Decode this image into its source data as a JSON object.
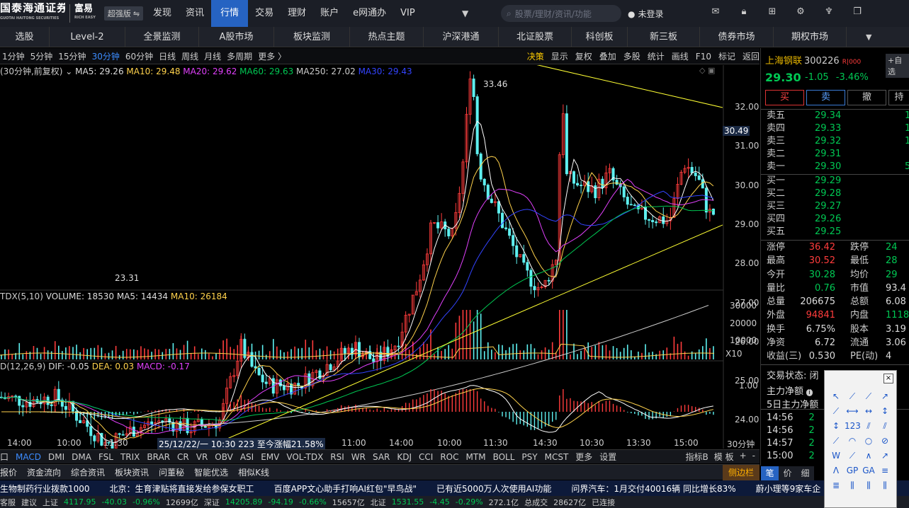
{
  "brand": {
    "name": "国泰海通证券",
    "sub": "GUOTAI HAITONG SECURITIES",
    "partner": "富易",
    "partner_sub": "RICH EASY",
    "edition": "超强版"
  },
  "nav": [
    "发现",
    "资讯",
    "行情",
    "交易",
    "理财",
    "账户",
    "e网通办",
    "VIP"
  ],
  "nav_active": "行情",
  "search": {
    "placeholder": "股票/理财/资讯/功能"
  },
  "login": "未登录",
  "tabs2": [
    "选股",
    "Level-2",
    "全景监测",
    "A股市场",
    "板块监测",
    "热点主题",
    "沪深港通",
    "北证股票",
    "科创板",
    "新三板",
    "债券市场",
    "期权市场"
  ],
  "periods": [
    "1分钟",
    "5分钟",
    "15分钟",
    "30分钟",
    "60分钟",
    "日线",
    "周线",
    "月线",
    "多周期",
    "更多 〉"
  ],
  "period_selected": "30分钟",
  "tools": [
    "决策",
    "显示",
    "复权",
    "叠加",
    "多股",
    "统计",
    "画线",
    "F10",
    "标记",
    "返回"
  ],
  "ma_line": {
    "title": "(30分钟,前复权)",
    "ma5": "MA5: 29.26",
    "ma10": "MA10: 29.48",
    "ma20": "MA20: 29.62",
    "ma60": "MA60: 29.63",
    "ma250": "MA250: 27.02",
    "ma30": "MA30: 29.43"
  },
  "chart_labels": {
    "high": "33.46",
    "low": "23.31",
    "cur": "30.49"
  },
  "price_axis": [
    "32.00",
    "31.00",
    "30.00",
    "29.00",
    "28.00",
    "27.00",
    "26.00",
    "25.00",
    "24.00"
  ],
  "vol_line": {
    "title": "TDX(5,10)",
    "volume": "VOLUME: 18530",
    "ma5": "MA5: 14434",
    "ma10": "MA10: 26184"
  },
  "vol_axis": [
    "30000",
    "20000",
    "10000"
  ],
  "vol_unit": "X10",
  "macd_line": {
    "title": "D(12,26,9)",
    "dif": "DIF: -0.05",
    "dea": "DEA: 0.03",
    "macd": "MACD: -0.17"
  },
  "macd_axis": [
    "1.00"
  ],
  "time_axis": [
    "14:00",
    "10:00",
    "11:30",
    "11:00",
    "14:00",
    "10:00",
    "11:30",
    "14:30",
    "10:30",
    "13:30",
    "15:00"
  ],
  "time_cursor": "25/12/22/一 10:30 223 至今涨幅21.58%",
  "time_unit": "30分钟",
  "ind_tabs": [
    "口",
    "MACD",
    "DMI",
    "DMA",
    "FSL",
    "TRIX",
    "BRAR",
    "CR",
    "VR",
    "OBV",
    "ASI",
    "EMV",
    "VOL-TDX",
    "RSI",
    "WR",
    "SAR",
    "KDJ",
    "CCI",
    "ROC",
    "MTM",
    "BOLL",
    "PSY",
    "MCST",
    "更多",
    "设置"
  ],
  "ind_tab_selected": "MACD",
  "ind_right": [
    "指标B",
    "模 板",
    "+",
    "-"
  ],
  "bottom_tabs": [
    "报价",
    "资金流向",
    "综合资讯",
    "板块资讯",
    "问董秘",
    "智能优选",
    "相似K线"
  ],
  "side_btn": "侧边栏",
  "stock": {
    "name": "上海钢联",
    "code": "300226",
    "tag": "R|000",
    "btn": "自选",
    "price": "29.30",
    "change": "-1.05",
    "pct": "-3.46%"
  },
  "trade_btns": [
    "买",
    "卖",
    "撤",
    "持"
  ],
  "sells": [
    {
      "l": "卖五",
      "p": "29.34",
      "v": "1"
    },
    {
      "l": "卖四",
      "p": "29.33",
      "v": "1"
    },
    {
      "l": "卖三",
      "p": "29.32",
      "v": "1"
    },
    {
      "l": "卖二",
      "p": "29.31",
      "v": ""
    },
    {
      "l": "卖一",
      "p": "29.30",
      "v": "5"
    }
  ],
  "buys": [
    {
      "l": "买一",
      "p": "29.29",
      "v": ""
    },
    {
      "l": "买二",
      "p": "29.28",
      "v": ""
    },
    {
      "l": "买三",
      "p": "29.27",
      "v": ""
    },
    {
      "l": "买四",
      "p": "29.26",
      "v": ""
    },
    {
      "l": "买五",
      "p": "29.25",
      "v": ""
    }
  ],
  "stats": [
    {
      "l1": "涨停",
      "v1": "36.42",
      "c1": "red",
      "l2": "跌停",
      "v2": "24",
      "c2": "grn"
    },
    {
      "l1": "最高",
      "v1": "30.52",
      "c1": "red",
      "l2": "最低",
      "v2": "28",
      "c2": "grn"
    },
    {
      "l1": "今开",
      "v1": "30.28",
      "c1": "grn",
      "l2": "均价",
      "v2": "29",
      "c2": "grn"
    },
    {
      "l1": "量比",
      "v1": "0.76",
      "c1": "grn",
      "l2": "市值",
      "v2": "93.4",
      "c2": "wht"
    },
    {
      "l1": "总量",
      "v1": "206675",
      "c1": "wht",
      "l2": "总额",
      "v2": "6.08",
      "c2": "wht"
    },
    {
      "l1": "外盘",
      "v1": "94841",
      "c1": "red",
      "l2": "内盘",
      "v2": "1118",
      "c2": "grn"
    },
    {
      "l1": "换手",
      "v1": "6.75%",
      "c1": "wht",
      "l2": "股本",
      "v2": "3.19",
      "c2": "wht"
    },
    {
      "l1": "净资",
      "v1": "6.72",
      "c1": "wht",
      "l2": "流通",
      "v2": "3.06",
      "c2": "wht"
    },
    {
      "l1": "收益(三)",
      "v1": "0.530",
      "c1": "wht",
      "l2": "PE(动)",
      "v2": "4",
      "c2": "wht"
    }
  ],
  "trade_status": "交易状态: 闭",
  "flow": [
    "主力净额",
    "5日主力净额"
  ],
  "ticks": [
    "14:56",
    "14:56",
    "14:57",
    "15:00"
  ],
  "ticks_vals": [
    "2",
    "2",
    "2",
    "2"
  ],
  "rb_tabs": [
    "笔",
    "价",
    "细"
  ],
  "news": [
    "生物制药行业拨款1000",
    "北京：生育津贴将直接发给参保女职工",
    "百度APP文心助手打响AI红包\"早鸟战\"",
    "已有近5000万人次使用AI功能",
    "问界汽车：1月交付40016辆 同比增长83%",
    "蔚小理等9家车企"
  ],
  "status": [
    "客服",
    "建议",
    "上证",
    "4117.95",
    "-40.03",
    "-0.96%",
    "12699亿",
    "深证",
    "14205.89",
    "-94.19",
    "-0.66%",
    "15657亿",
    "北证",
    "1531.55",
    "-4.45",
    "-0.29%",
    "272.1亿",
    "总成交",
    "28627亿",
    "已连接"
  ],
  "colors": {
    "accent": "#2663c2",
    "up": "#ff3c3c",
    "down": "#00c853",
    "ma5": "#ffffff",
    "ma10": "#ffd24c",
    "ma20": "#e040fb",
    "ma60": "#00c853",
    "ma250": "#cccccc",
    "ma30": "#3344ff"
  },
  "chart_data": {
    "type": "candlestick",
    "title": "上海钢联 300226 30分钟 前复权",
    "ylim": [
      23,
      33.5
    ],
    "annotated_high": 33.46,
    "annotated_low": 23.31,
    "last": 29.3,
    "ma": {
      "MA5": 29.26,
      "MA10": 29.48,
      "MA20": 29.62,
      "MA60": 29.63,
      "MA250": 27.02,
      "MA30": 29.43
    },
    "volume": {
      "VOLUME": 18530,
      "MA5": 14434,
      "MA10": 26184
    },
    "macd": {
      "DIF": -0.05,
      "DEA": 0.03,
      "MACD": -0.17
    }
  }
}
